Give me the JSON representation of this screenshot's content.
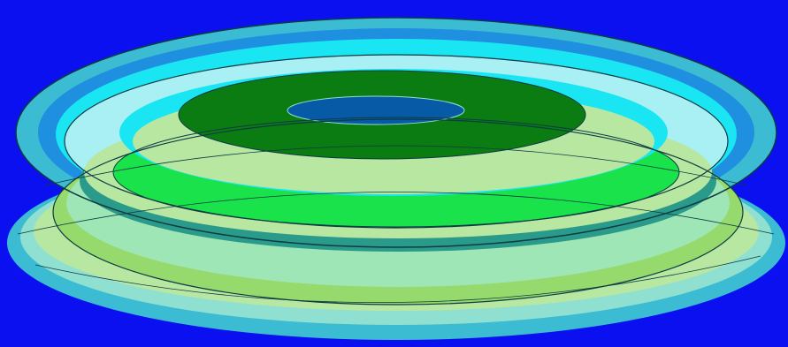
{
  "figure": {
    "kind": "3D layered ring/disc contour render (no visible text)",
    "colors": {
      "background": "#0a10f0",
      "outer_ring": "#3bbcd2",
      "outer_ring_inner_band": "#1f8fe0",
      "cyan_band": "#19e6f2",
      "light_cyan_band": "#a8f0f3",
      "pale_green": "#b8e7a1",
      "green_yellow": "#96d96c",
      "mint": "#9ee6b6",
      "teal_band": "#2a9b8a",
      "bright_green": "#19e24a",
      "dark_green": "#0b7c12",
      "center_blue": "#075aa5",
      "outline": "#0d3b44"
    }
  }
}
